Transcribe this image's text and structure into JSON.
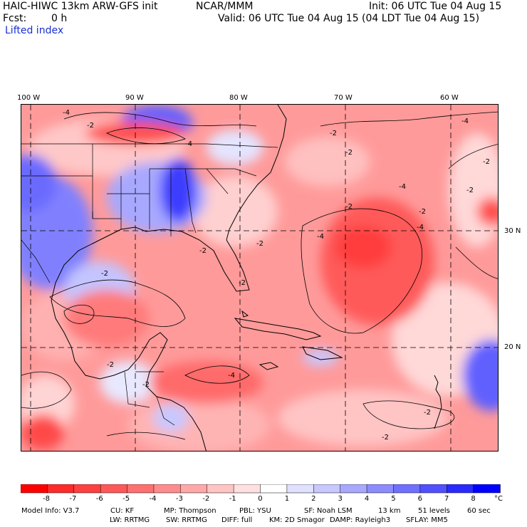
{
  "header": {
    "model_title": "HAIC-HIWC 13km ARW-GFS init",
    "center": "NCAR/MMM",
    "init": "Init: 06 UTC Tue 04 Aug 15",
    "fcst_label": "Fcst:",
    "fcst_value": "0 h",
    "valid": "Valid: 06 UTC Tue 04 Aug 15 (04 LDT Tue 04 Aug 15)",
    "field": "Lifted index"
  },
  "map": {
    "lon_labels": [
      "100 W",
      "90 W",
      "80 W",
      "70 W",
      "60 W"
    ],
    "lat_labels": [
      "30 N",
      "20 N"
    ],
    "contour_labels": [
      "-4",
      "-2",
      "-4",
      "-2",
      "-2",
      "-4",
      "-4",
      "-2",
      "-2",
      "-2",
      "-4",
      "-2",
      "-2",
      "-2",
      "-2",
      "-4",
      "-2",
      "-2",
      "-2",
      "-2",
      "-4",
      "-2"
    ],
    "colors": {
      "neg_strong": "#ff0000",
      "neg_mid": "#ff7070",
      "neg_light": "#ffc4c4",
      "neutral": "#ffffff",
      "pos_light": "#c8c8ff",
      "pos_mid": "#7070ff",
      "pos_strong": "#0000ff"
    }
  },
  "colorbar": {
    "labels": [
      "-8",
      "-7",
      "-6",
      "-5",
      "-4",
      "-3",
      "-2",
      "-1",
      "0",
      "1",
      "2",
      "3",
      "4",
      "5",
      "6",
      "7",
      "8"
    ],
    "unit": "°C",
    "colors": [
      "#ff0000",
      "#ff2a2a",
      "#ff4040",
      "#ff5858",
      "#ff7070",
      "#ff8c8c",
      "#ffa8a8",
      "#ffc4c4",
      "#ffe0e0",
      "#ffffff",
      "#e0e0ff",
      "#c8c8ff",
      "#a8a8ff",
      "#8c8cff",
      "#7070ff",
      "#5050ff",
      "#2a2aff",
      "#0000ff"
    ]
  },
  "footer": {
    "line1": [
      "Model Info: V3.7",
      "CU: KF",
      "MP: Thompson",
      "PBL: YSU",
      "SF: Noah LSM",
      "13 km",
      "51 levels",
      "60 sec"
    ],
    "line2": [
      "LW: RRTMG",
      "SW: RRTMG",
      "DIFF: full",
      "KM: 2D Smagor",
      "DAMP: Rayleigh3",
      "SFLAY: MM5"
    ]
  }
}
